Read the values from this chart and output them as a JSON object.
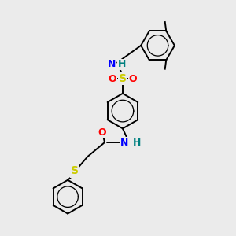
{
  "bg_color": "#ebebeb",
  "atom_colors": {
    "N": "#0000ff",
    "O": "#ff0000",
    "S": "#cccc00",
    "NH_teal": "#008080",
    "C": "#000000"
  },
  "bond_width": 1.4,
  "font_size": 9,
  "xlim": [
    0,
    10
  ],
  "ylim": [
    0,
    10
  ]
}
